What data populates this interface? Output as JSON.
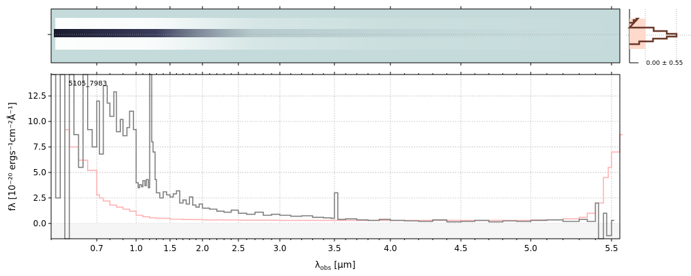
{
  "chart_data": {
    "type": "line",
    "object_label": "5105_7983",
    "xlabel": "λobs [μm]",
    "xlabel_main": "λ",
    "xlabel_sub": "obs",
    "xlabel_unit": " [μm]",
    "ylabel": "fλ [10⁻²⁰ ergs⁻¹cm⁻²Å⁻¹]",
    "xlim": [
      0.6,
      5.52
    ],
    "ylim": [
      -1.5,
      14.6
    ],
    "x_ticks": [
      0.7,
      1.0,
      1.5,
      2.0,
      2.5,
      3.0,
      3.5,
      4.0,
      4.5,
      5.0,
      5.5
    ],
    "x_tick_labels": [
      "0.7",
      "1.0",
      "1.5",
      "2.0",
      "2.5",
      "3.0",
      "3.5",
      "4.0",
      "4.5",
      "5.0",
      "5.5"
    ],
    "y_ticks": [
      0.0,
      2.5,
      5.0,
      7.5,
      10.0,
      12.5
    ],
    "y_tick_labels": [
      "0.0",
      "2.5",
      "5.0",
      "7.5",
      "10.0",
      "12.5"
    ],
    "grid": true,
    "series": [
      {
        "name": "flux",
        "color": "#808080",
        "x": [
          0.6,
          0.61,
          0.62,
          0.63,
          0.64,
          0.65,
          0.66,
          0.67,
          0.68,
          0.69,
          0.7,
          0.72,
          0.75,
          0.78,
          0.8,
          0.83,
          0.85,
          0.88,
          0.9,
          0.93,
          0.95,
          0.98,
          1.0,
          1.03,
          1.05,
          1.08,
          1.1,
          1.13,
          1.15,
          1.18,
          1.2,
          1.23,
          1.25,
          1.28,
          1.3,
          1.35,
          1.4,
          1.45,
          1.5,
          1.55,
          1.6,
          1.65,
          1.7,
          1.75,
          1.8,
          1.85,
          1.9,
          1.95,
          2.0,
          2.1,
          2.2,
          2.3,
          2.4,
          2.5,
          2.6,
          2.7,
          2.8,
          2.9,
          3.0,
          3.1,
          3.2,
          3.3,
          3.4,
          3.47,
          3.5,
          3.53,
          3.6,
          3.7,
          3.8,
          3.9,
          4.0,
          4.1,
          4.2,
          4.3,
          4.4,
          4.5,
          4.6,
          4.7,
          4.8,
          4.9,
          5.0,
          5.1,
          5.2,
          5.3,
          5.35,
          5.4,
          5.42,
          5.45,
          5.47,
          5.5
        ],
        "y": [
          14.6,
          2.5,
          14.6,
          -1.5,
          14.6,
          8.7,
          5.5,
          14.6,
          9.2,
          7.5,
          12.0,
          6.8,
          13.5,
          11.8,
          10.5,
          12.9,
          9.0,
          10.2,
          8.6,
          9.4,
          11.0,
          9.2,
          4.0,
          3.5,
          3.8,
          3.6,
          4.2,
          3.7,
          4.3,
          3.5,
          14.6,
          8.0,
          7.0,
          4.3,
          3.0,
          2.5,
          3.1,
          2.8,
          2.6,
          2.9,
          3.2,
          2.0,
          2.3,
          1.9,
          2.6,
          1.8,
          1.6,
          1.9,
          1.5,
          1.4,
          1.2,
          1.1,
          1.3,
          1.0,
          0.9,
          1.1,
          0.8,
          0.9,
          0.8,
          0.7,
          0.75,
          0.6,
          0.55,
          0.5,
          3.0,
          0.4,
          0.45,
          0.35,
          0.3,
          0.4,
          0.3,
          0.25,
          0.2,
          0.35,
          0.15,
          0.2,
          0.3,
          0.15,
          0.25,
          0.2,
          0.3,
          0.35,
          0.2,
          0.4,
          0.2,
          2.0,
          -1.5,
          1.0,
          -1.2,
          0.3
        ]
      },
      {
        "name": "uncertainty",
        "color": "#ffb3b3",
        "x": [
          0.63,
          0.64,
          0.66,
          0.68,
          0.7,
          0.72,
          0.75,
          0.8,
          0.85,
          0.9,
          0.95,
          1.0,
          1.1,
          1.2,
          1.3,
          1.5,
          1.7,
          2.0,
          2.5,
          3.0,
          3.5,
          4.0,
          4.5,
          5.0,
          5.2,
          5.3,
          5.35,
          5.4,
          5.45,
          5.48,
          5.5,
          5.52
        ],
        "y": [
          9.2,
          7.5,
          6.2,
          5.2,
          2.8,
          2.5,
          2.2,
          1.8,
          1.6,
          1.4,
          1.2,
          0.8,
          0.65,
          0.55,
          0.5,
          0.42,
          0.38,
          0.35,
          0.32,
          0.3,
          0.3,
          0.3,
          0.3,
          0.35,
          0.45,
          0.6,
          1.0,
          2.0,
          4.5,
          5.5,
          7.0,
          8.7
        ]
      }
    ]
  },
  "side_panel": {
    "label": "0.00 ± 0.55"
  }
}
